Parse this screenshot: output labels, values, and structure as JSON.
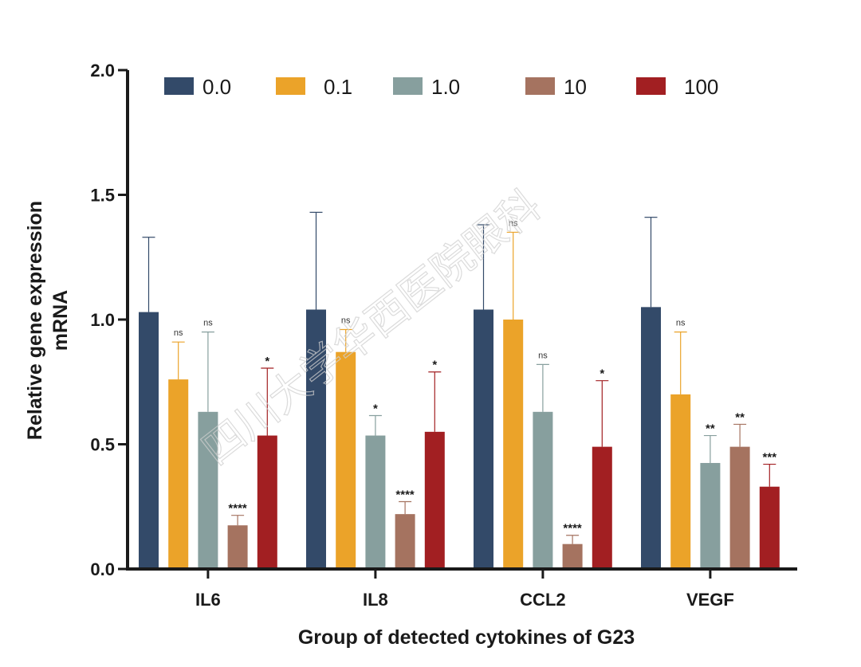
{
  "chart_data": {
    "type": "bar",
    "title": "",
    "xlabel": "Group of detected cytokines of G23",
    "ylabel_lines": [
      "Relative gene expression",
      "mRNA"
    ],
    "ylim": [
      0,
      2.0
    ],
    "yticks": [
      "0.0",
      "0.5",
      "1.0",
      "1.5",
      "2.0"
    ],
    "ytick_values": [
      0,
      0.5,
      1.0,
      1.5,
      2.0
    ],
    "grid": false,
    "legend_placement": "top",
    "categories": [
      "IL6",
      "IL8",
      "CCL2",
      "VEGF"
    ],
    "series": [
      {
        "name": "0.0",
        "color": "#334a69",
        "values": [
          1.03,
          1.04,
          1.04,
          1.05
        ],
        "errors": [
          0.3,
          0.39,
          0.34,
          0.36
        ],
        "sig": [
          "",
          "",
          "",
          ""
        ]
      },
      {
        "name": "0.1",
        "color": "#eba329",
        "values": [
          0.76,
          0.87,
          1.0,
          0.7
        ],
        "errors": [
          0.15,
          0.09,
          0.35,
          0.25
        ],
        "sig": [
          "ns",
          "ns",
          "ns",
          "ns"
        ]
      },
      {
        "name": "1.0",
        "color": "#879f9e",
        "values": [
          0.63,
          0.535,
          0.63,
          0.425
        ],
        "errors": [
          0.32,
          0.08,
          0.19,
          0.11
        ],
        "sig": [
          "ns",
          "*",
          "ns",
          "**"
        ]
      },
      {
        "name": "10",
        "color": "#a57360",
        "values": [
          0.175,
          0.22,
          0.1,
          0.49
        ],
        "errors": [
          0.04,
          0.05,
          0.035,
          0.09
        ],
        "sig": [
          "****",
          "****",
          "****",
          "**"
        ]
      },
      {
        "name": "100",
        "color": "#a21f22",
        "values": [
          0.535,
          0.55,
          0.49,
          0.33
        ],
        "errors": [
          0.27,
          0.24,
          0.265,
          0.09
        ],
        "sig": [
          "*",
          "*",
          "*",
          "***"
        ]
      }
    ]
  },
  "watermark": {
    "text": "四川大学华西医院眼科",
    "color": "#cfcfcf"
  }
}
